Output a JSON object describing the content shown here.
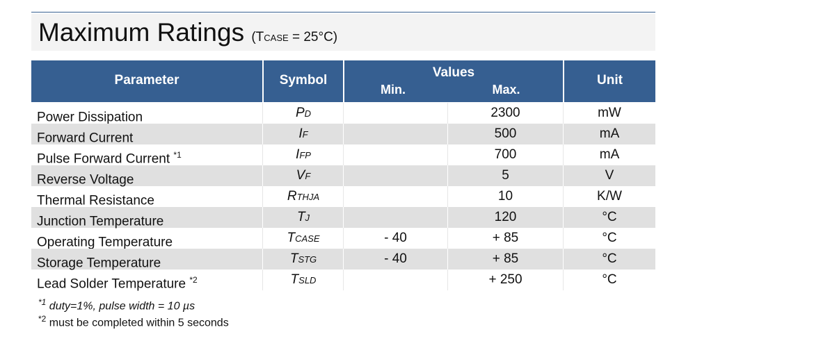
{
  "title": {
    "main": "Maximum Ratings",
    "cond_open": "(T",
    "cond_sub": "CASE",
    "cond_rest": " = 25°C)"
  },
  "header": {
    "parameter": "Parameter",
    "symbol": "Symbol",
    "values": "Values",
    "min": "Min.",
    "max": "Max.",
    "unit": "Unit"
  },
  "rows": [
    {
      "param": "Power Dissipation",
      "note": "",
      "sym": "P",
      "sub": "D",
      "min": "",
      "max": "2300",
      "unit": "mW"
    },
    {
      "param": "Forward Current",
      "note": "",
      "sym": "I",
      "sub": "F",
      "min": "",
      "max": "500",
      "unit": "mA"
    },
    {
      "param": "Pulse Forward Current",
      "note": "*1",
      "sym": "I",
      "sub": "FP",
      "min": "",
      "max": "700",
      "unit": "mA"
    },
    {
      "param": "Reverse Voltage",
      "note": "",
      "sym": "V",
      "sub": "F",
      "min": "",
      "max": "5",
      "unit": "V"
    },
    {
      "param": "Thermal Resistance",
      "note": "",
      "sym": "R",
      "sub": "THJA",
      "min": "",
      "max": "10",
      "unit": "K/W"
    },
    {
      "param": "Junction Temperature",
      "note": "",
      "sym": "T",
      "sub": "J",
      "min": "",
      "max": "120",
      "unit": "°C"
    },
    {
      "param": "Operating Temperature",
      "note": "",
      "sym": "T",
      "sub": "CASE",
      "min": "- 40",
      "max": "+ 85",
      "unit": "°C"
    },
    {
      "param": "Storage Temperature",
      "note": "",
      "sym": "T",
      "sub": "STG",
      "min": "- 40",
      "max": "+ 85",
      "unit": "°C"
    },
    {
      "param": "Lead Solder Temperature",
      "note": "*2",
      "sym": "T",
      "sub": "SLD",
      "min": "",
      "max": "+ 250",
      "unit": "°C"
    }
  ],
  "notes": [
    {
      "mark": "*1",
      "text": " duty=1%, pulse width = 10 µs"
    },
    {
      "mark": "*2",
      "text": " must be completed within 5 seconds"
    }
  ]
}
